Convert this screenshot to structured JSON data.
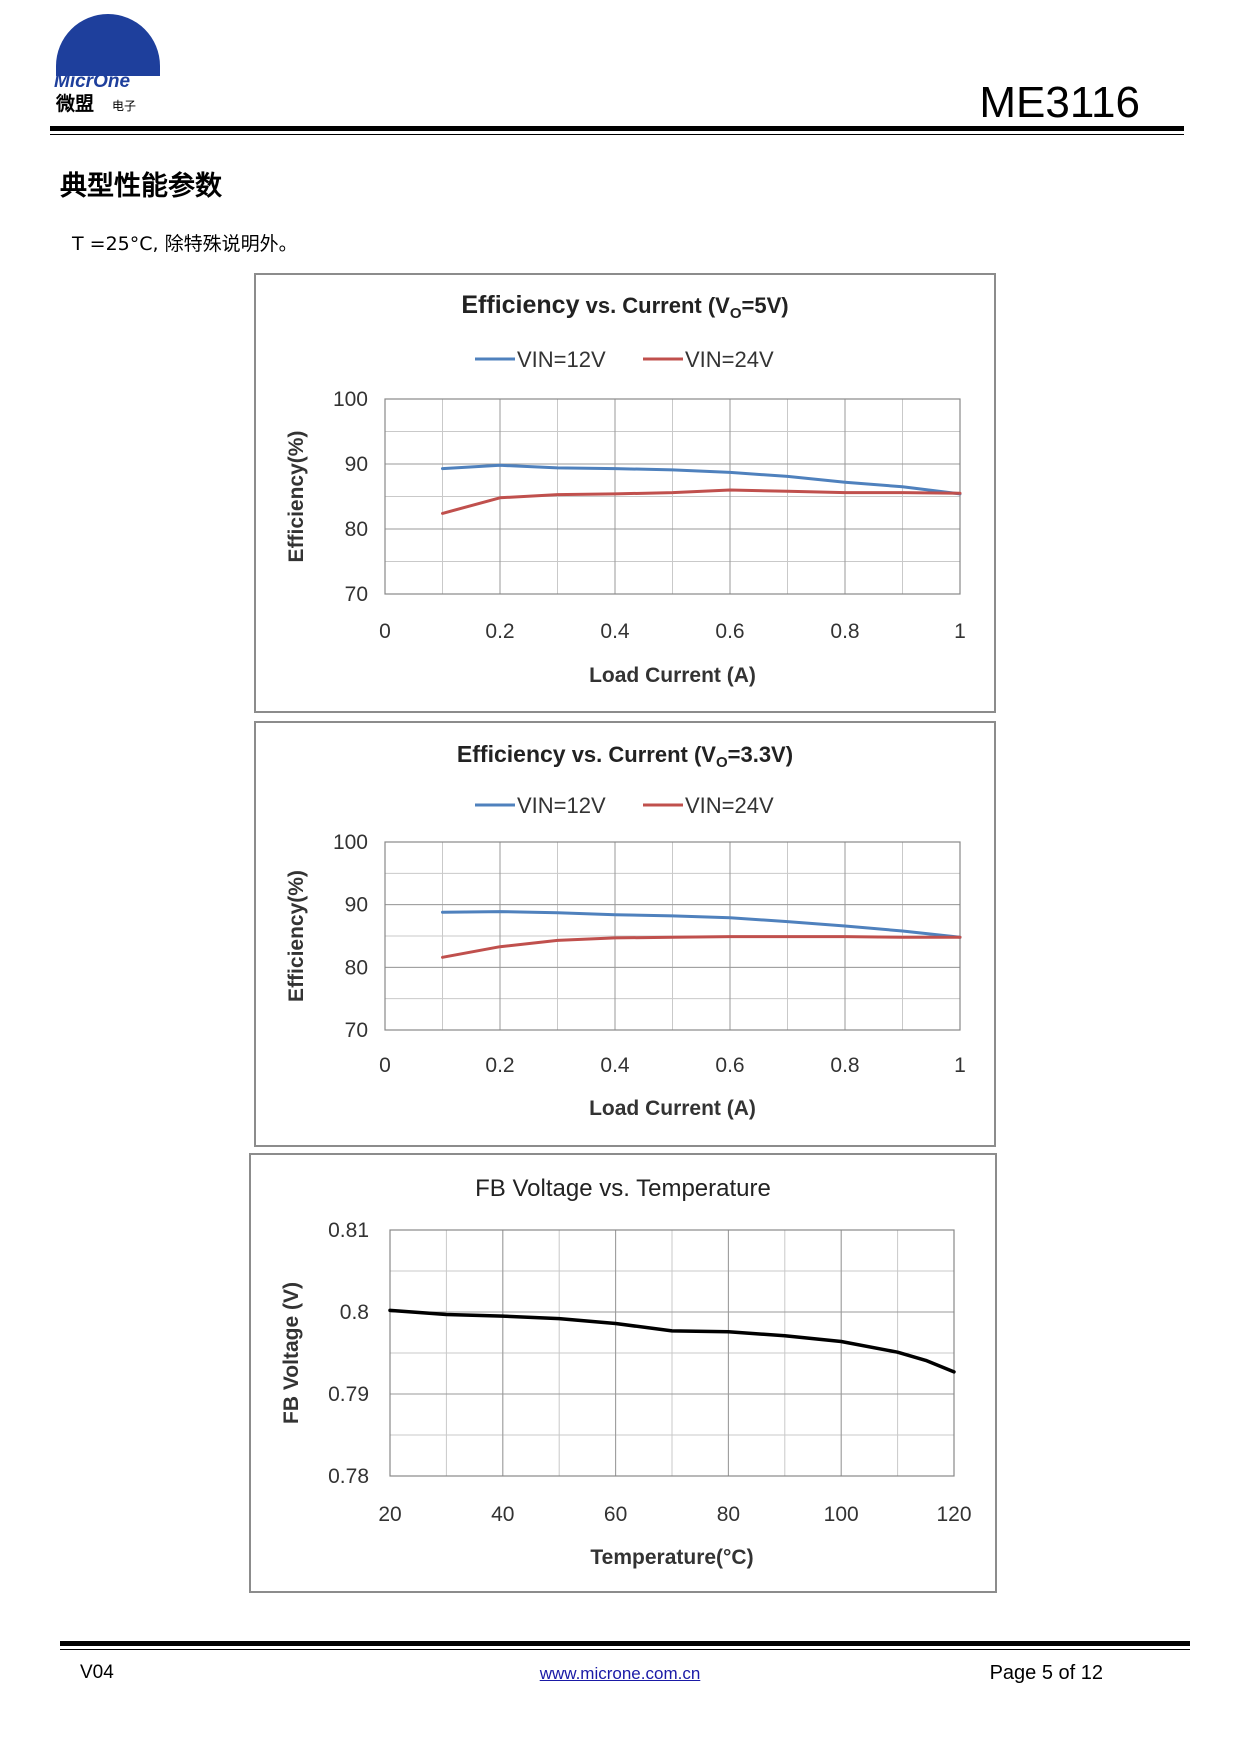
{
  "header": {
    "logo_text_en": "MicrOne",
    "logo_text_cn": "微盟",
    "logo_text_sub": "电子",
    "part_number": "ME3116"
  },
  "section_title": "典型性能参数",
  "condition_text": "T =25°C, 除特殊说明外。",
  "colors": {
    "vin12": "#4f81bd",
    "vin24": "#c0504d",
    "fb_line": "#000000",
    "grid": "#c9c9c9",
    "panel_border": "#8c8c8c"
  },
  "chart_data": [
    {
      "type": "line",
      "title_main": "Efficiency",
      "title_rest": " vs. Current (V",
      "title_sub": "O",
      "title_end": "=5V)",
      "xlabel": "Load Current (A)",
      "ylabel": "Efficiency(%)",
      "xlim": [
        0,
        1
      ],
      "ylim": [
        70,
        100
      ],
      "x_ticks": [
        "0",
        "0.2",
        "0.4",
        "0.6",
        "0.8",
        "1"
      ],
      "y_ticks": [
        "100",
        "90",
        "80",
        "70"
      ],
      "grid": true,
      "legend_position": "top",
      "series": [
        {
          "name": "VIN=12V",
          "color": "#4f81bd",
          "x": [
            0.1,
            0.2,
            0.3,
            0.4,
            0.5,
            0.6,
            0.7,
            0.8,
            0.9,
            1.0
          ],
          "y": [
            89.3,
            89.8,
            89.4,
            89.3,
            89.1,
            88.7,
            88.1,
            87.2,
            86.5,
            85.4
          ]
        },
        {
          "name": "VIN=24V",
          "color": "#c0504d",
          "x": [
            0.1,
            0.2,
            0.3,
            0.4,
            0.5,
            0.6,
            0.7,
            0.8,
            0.9,
            1.0
          ],
          "y": [
            82.4,
            84.8,
            85.3,
            85.4,
            85.6,
            86.0,
            85.8,
            85.6,
            85.6,
            85.5
          ]
        }
      ]
    },
    {
      "type": "line",
      "title_main": "Efficiency",
      "title_rest": " vs. Current (V",
      "title_sub": "O",
      "title_end": "=3.3V)",
      "xlabel": "Load Current (A)",
      "ylabel": "Efficiency(%)",
      "xlim": [
        0,
        1
      ],
      "ylim": [
        70,
        100
      ],
      "x_ticks": [
        "0",
        "0.2",
        "0.4",
        "0.6",
        "0.8",
        "1"
      ],
      "y_ticks": [
        "100",
        "90",
        "80",
        "70"
      ],
      "grid": true,
      "legend_position": "top",
      "series": [
        {
          "name": "VIN=12V",
          "color": "#4f81bd",
          "x": [
            0.1,
            0.2,
            0.3,
            0.4,
            0.5,
            0.6,
            0.7,
            0.8,
            0.9,
            1.0
          ],
          "y": [
            88.8,
            88.9,
            88.7,
            88.4,
            88.2,
            87.9,
            87.3,
            86.6,
            85.8,
            84.8
          ]
        },
        {
          "name": "VIN=24V",
          "color": "#c0504d",
          "x": [
            0.1,
            0.2,
            0.3,
            0.4,
            0.5,
            0.6,
            0.7,
            0.8,
            0.9,
            1.0
          ],
          "y": [
            81.6,
            83.3,
            84.3,
            84.7,
            84.8,
            84.9,
            84.9,
            84.9,
            84.8,
            84.8
          ]
        }
      ]
    },
    {
      "type": "line",
      "title_main": "",
      "title_rest": "FB Voltage vs. Temperature",
      "title_sub": "",
      "title_end": "",
      "xlabel": "Temperature(°C)",
      "ylabel": "FB Voltage (V)",
      "xlim": [
        20,
        120
      ],
      "ylim": [
        0.78,
        0.81
      ],
      "x_ticks": [
        "20",
        "40",
        "60",
        "80",
        "100",
        "120"
      ],
      "y_ticks": [
        "0.81",
        "0.8",
        "0.79",
        "0.78"
      ],
      "grid": true,
      "legend_position": "none",
      "series": [
        {
          "color": "#000000",
          "x": [
            20,
            30,
            40,
            50,
            60,
            70,
            80,
            90,
            100,
            110,
            115,
            120
          ],
          "y": [
            0.8002,
            0.7997,
            0.7995,
            0.7992,
            0.7986,
            0.7977,
            0.7976,
            0.7971,
            0.7964,
            0.7951,
            0.7941,
            0.7927
          ]
        }
      ]
    }
  ],
  "footer": {
    "version": "V04",
    "url": "www.microne.com.cn",
    "page": "Page 5 of 12"
  }
}
